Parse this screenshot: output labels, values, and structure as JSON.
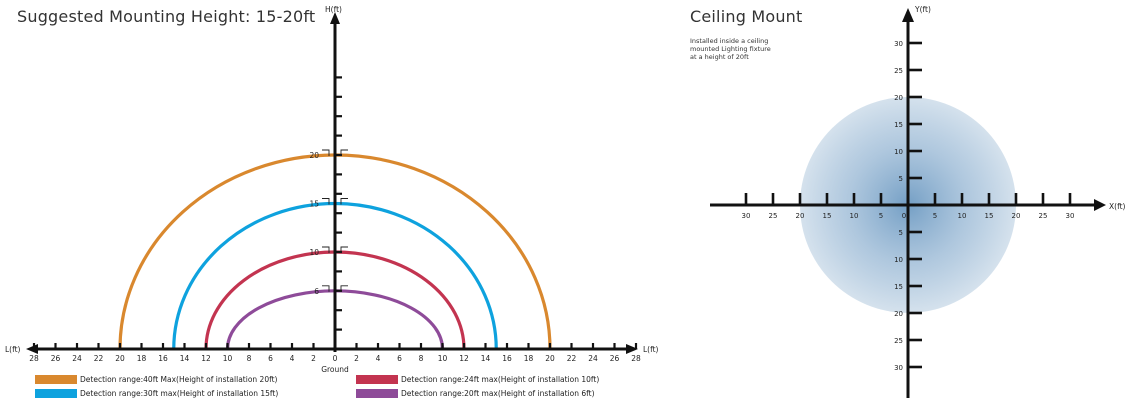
{
  "left": {
    "title": "Suggested Mounting Height: 15-20ft",
    "y_axis_label": "H(ft)",
    "x_axis_label_left": "L(ft)",
    "x_axis_label_right": "L(ft)",
    "ground_label": "Ground",
    "x_ticks_left": [
      "28",
      "26",
      "24",
      "22",
      "20",
      "18",
      "16",
      "14",
      "12",
      "10",
      "8",
      "6",
      "4",
      "2"
    ],
    "x_ticks_right": [
      "0",
      "2",
      "4",
      "6",
      "8",
      "10",
      "12",
      "14",
      "16",
      "18",
      "20",
      "22",
      "24",
      "26",
      "28"
    ],
    "height_markers": [
      "20",
      "15",
      "10",
      "6"
    ],
    "arcs": [
      {
        "height": 20,
        "half_range": 20,
        "color": "#D9882E"
      },
      {
        "height": 15,
        "half_range": 15,
        "color": "#0EA2DE"
      },
      {
        "height": 10,
        "half_range": 12,
        "color": "#C33450"
      },
      {
        "height": 6,
        "half_range": 10,
        "color": "#8E4B99"
      }
    ],
    "legend": [
      {
        "text": "Detection range:40ft Max(Height of installation 20ft)",
        "color": "#D9882E"
      },
      {
        "text": "Detection range:30ft max(Height of installation 15ft)",
        "color": "#0EA2DE"
      },
      {
        "text": "Detection range:24ft max(Height of installation 10ft)",
        "color": "#C33450"
      },
      {
        "text": "Detection range:20ft max(Height of installation 6ft)",
        "color": "#8E4B99"
      }
    ]
  },
  "right": {
    "title": "Ceiling Mount",
    "note_lines": [
      "Installed inside a ceiling",
      "mounted Lighting fixture",
      "at a height of 20ft"
    ],
    "y_axis_label": "Y(ft)",
    "x_axis_label": "X(ft)",
    "x_ticks_left": [
      "30",
      "25",
      "20",
      "15",
      "10",
      "5",
      "0"
    ],
    "x_ticks_right": [
      "5",
      "10",
      "15",
      "20",
      "25",
      "30"
    ],
    "y_ticks_up": [
      "30",
      "25",
      "20",
      "15",
      "10",
      "5"
    ],
    "y_ticks_down": [
      "5",
      "10",
      "15",
      "20",
      "25",
      "30"
    ],
    "coverage_radius_ft": 20,
    "coverage_color": "#6D9AC2"
  }
}
